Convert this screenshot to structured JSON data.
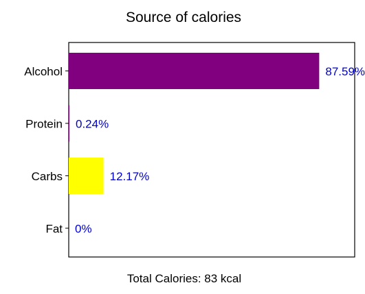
{
  "chart_data": {
    "type": "bar",
    "orientation": "horizontal",
    "title": "Source of calories",
    "xlabel": "Total Calories: 83 kcal",
    "ylabel": "",
    "categories": [
      "Alcohol",
      "Protein",
      "Carbs",
      "Fat"
    ],
    "values": [
      87.59,
      0.24,
      12.17,
      0
    ],
    "value_labels": [
      "87.59%",
      "0.24%",
      "12.17%",
      "0%"
    ],
    "bar_colors": [
      "#800080",
      "#800080",
      "#ffff00",
      "#800080"
    ],
    "label_color": "#0000cc",
    "xlim": [
      0,
      100
    ],
    "x_ticks_visible": false,
    "grid": false
  }
}
